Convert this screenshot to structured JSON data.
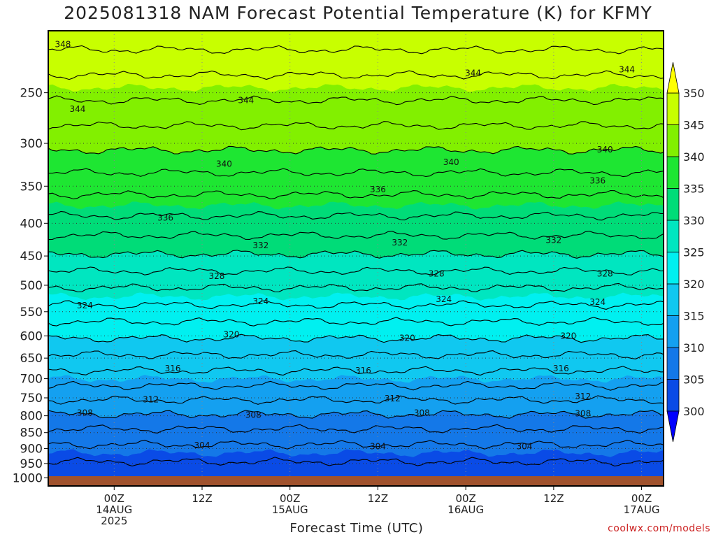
{
  "chart_data": {
    "type": "heatmap",
    "title": "2025081318 NAM Forecast Potential Temperature (K) for KFMY",
    "xlabel": "Forecast Time (UTC)",
    "ylabel": "",
    "credit": "coolwx.com/models",
    "y_axis": {
      "unit": "hPa",
      "scale": "log",
      "reversed": true,
      "ylim": [
        1030,
        200
      ],
      "ticks": [
        250,
        300,
        350,
        400,
        450,
        500,
        550,
        600,
        650,
        700,
        750,
        800,
        850,
        900,
        950,
        1000
      ]
    },
    "x_axis": {
      "xlim_hours": [
        -9,
        75
      ],
      "ticks": [
        {
          "hour": 0,
          "lines": [
            "00Z",
            "14AUG",
            "2025"
          ]
        },
        {
          "hour": 12,
          "lines": [
            "12Z"
          ]
        },
        {
          "hour": 24,
          "lines": [
            "00Z",
            "15AUG"
          ]
        },
        {
          "hour": 36,
          "lines": [
            "12Z"
          ]
        },
        {
          "hour": 48,
          "lines": [
            "00Z",
            "16AUG"
          ]
        },
        {
          "hour": 60,
          "lines": [
            "12Z"
          ]
        },
        {
          "hour": 72,
          "lines": [
            "00Z",
            "17AUG"
          ]
        }
      ]
    },
    "grid": true,
    "colorbar": {
      "levels": [
        300,
        305,
        310,
        315,
        320,
        325,
        330,
        335,
        340,
        345,
        350
      ],
      "colors": [
        "#0000ff",
        "#0a4be6",
        "#1478e8",
        "#14a0f0",
        "#10c8f0",
        "#00f0f0",
        "#00e6c0",
        "#00dc78",
        "#1ee632",
        "#82f000",
        "#c8ff00",
        "#ffff00"
      ],
      "extend": "both",
      "ticks": [
        300,
        305,
        310,
        315,
        320,
        325,
        330,
        335,
        340,
        345,
        350
      ]
    },
    "profile": {
      "pressure": [
        1000,
        950,
        900,
        850,
        800,
        750,
        700,
        650,
        600,
        550,
        500,
        450,
        400,
        350,
        300,
        250,
        200
      ],
      "theta": [
        302.5,
        303.8,
        305.5,
        307.5,
        309.8,
        312.3,
        315.0,
        317.6,
        320.3,
        323.2,
        326.3,
        329.8,
        333.3,
        336.8,
        340.6,
        344.6,
        349.5
      ]
    },
    "contour_interval": 2,
    "contour_labels": [
      {
        "value": 348,
        "hour": -7,
        "p": 210
      },
      {
        "value": 344,
        "hour": -5,
        "p": 265
      },
      {
        "value": 344,
        "hour": 18,
        "p": 257
      },
      {
        "value": 344,
        "hour": 49,
        "p": 233
      },
      {
        "value": 344,
        "hour": 70,
        "p": 230
      },
      {
        "value": 340,
        "hour": 67,
        "p": 307
      },
      {
        "value": 340,
        "hour": 15,
        "p": 323
      },
      {
        "value": 340,
        "hour": 46,
        "p": 321
      },
      {
        "value": 336,
        "hour": 7,
        "p": 392
      },
      {
        "value": 336,
        "hour": 36,
        "p": 354
      },
      {
        "value": 336,
        "hour": 66,
        "p": 343
      },
      {
        "value": 332,
        "hour": 20,
        "p": 433
      },
      {
        "value": 332,
        "hour": 39,
        "p": 429
      },
      {
        "value": 332,
        "hour": 60,
        "p": 425
      },
      {
        "value": 328,
        "hour": 14,
        "p": 484
      },
      {
        "value": 328,
        "hour": 44,
        "p": 480
      },
      {
        "value": 328,
        "hour": 67,
        "p": 480
      },
      {
        "value": 324,
        "hour": -4,
        "p": 538
      },
      {
        "value": 324,
        "hour": 20,
        "p": 530
      },
      {
        "value": 324,
        "hour": 45,
        "p": 526
      },
      {
        "value": 324,
        "hour": 66,
        "p": 531
      },
      {
        "value": 320,
        "hour": 16,
        "p": 597
      },
      {
        "value": 320,
        "hour": 40,
        "p": 605
      },
      {
        "value": 320,
        "hour": 62,
        "p": 600
      },
      {
        "value": 316,
        "hour": 8,
        "p": 675
      },
      {
        "value": 316,
        "hour": 34,
        "p": 680
      },
      {
        "value": 316,
        "hour": 61,
        "p": 675
      },
      {
        "value": 312,
        "hour": 5,
        "p": 755
      },
      {
        "value": 312,
        "hour": 38,
        "p": 752
      },
      {
        "value": 312,
        "hour": 64,
        "p": 746
      },
      {
        "value": 308,
        "hour": -4,
        "p": 792
      },
      {
        "value": 308,
        "hour": 19,
        "p": 798
      },
      {
        "value": 308,
        "hour": 42,
        "p": 792
      },
      {
        "value": 308,
        "hour": 64,
        "p": 794
      },
      {
        "value": 304,
        "hour": 12,
        "p": 890
      },
      {
        "value": 304,
        "hour": 36,
        "p": 893
      },
      {
        "value": 304,
        "hour": 56,
        "p": 893
      }
    ]
  }
}
